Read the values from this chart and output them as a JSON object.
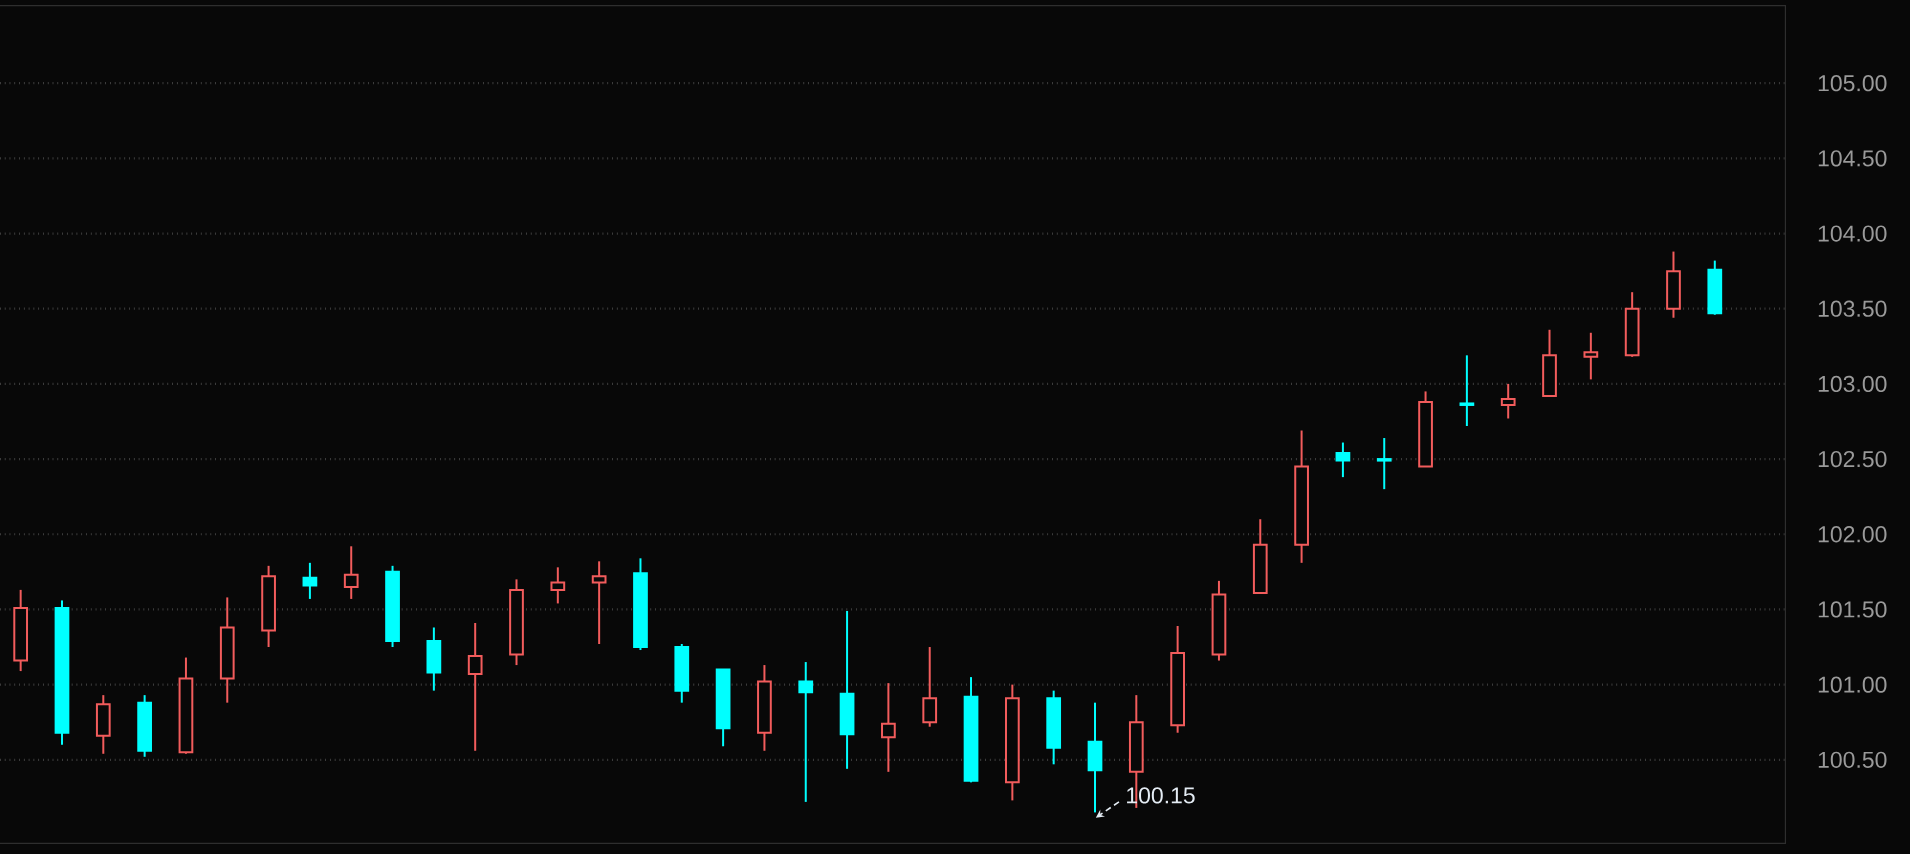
{
  "chart_data": {
    "type": "candlestick",
    "categories": [
      null,
      null,
      null,
      null,
      null,
      null,
      null,
      null,
      null,
      null,
      null,
      null,
      null,
      null,
      null,
      null,
      null,
      null,
      null,
      null,
      null,
      null,
      null,
      null,
      null,
      null,
      null,
      null,
      null,
      null,
      null,
      null,
      null,
      null,
      null,
      null,
      null,
      null,
      null,
      null,
      null,
      null
    ],
    "ohlc": [
      [
        101.16,
        101.63,
        101.09,
        101.51
      ],
      [
        101.51,
        101.56,
        100.6,
        100.68
      ],
      [
        100.66,
        100.93,
        100.54,
        100.87
      ],
      [
        100.88,
        100.93,
        100.52,
        100.56
      ],
      [
        100.55,
        101.18,
        100.54,
        101.04
      ],
      [
        101.04,
        101.58,
        100.88,
        101.38
      ],
      [
        101.36,
        101.79,
        101.25,
        101.72
      ],
      [
        101.71,
        101.81,
        101.57,
        101.66
      ],
      [
        101.65,
        101.92,
        101.57,
        101.73
      ],
      [
        101.75,
        101.79,
        101.25,
        101.29
      ],
      [
        101.29,
        101.38,
        100.96,
        101.08
      ],
      [
        101.07,
        101.41,
        100.56,
        101.19
      ],
      [
        101.2,
        101.7,
        101.13,
        101.63
      ],
      [
        101.63,
        101.78,
        101.54,
        101.68
      ],
      [
        101.68,
        101.82,
        101.27,
        101.72
      ],
      [
        101.74,
        101.84,
        101.23,
        101.25
      ],
      [
        101.25,
        101.27,
        100.88,
        100.96
      ],
      [
        101.1,
        101.1,
        100.59,
        100.71
      ],
      [
        100.68,
        101.13,
        100.56,
        101.02
      ],
      [
        101.02,
        101.15,
        100.22,
        100.95
      ],
      [
        100.94,
        101.49,
        100.44,
        100.67
      ],
      [
        100.65,
        101.01,
        100.42,
        100.74
      ],
      [
        100.75,
        101.25,
        100.72,
        100.91
      ],
      [
        100.92,
        101.05,
        100.35,
        100.36
      ],
      [
        100.35,
        101.0,
        100.23,
        100.91
      ],
      [
        100.91,
        100.96,
        100.47,
        100.58
      ],
      [
        100.62,
        100.88,
        100.15,
        100.43
      ],
      [
        100.42,
        100.93,
        100.18,
        100.75
      ],
      [
        100.73,
        101.39,
        100.68,
        101.21
      ],
      [
        101.2,
        101.69,
        101.16,
        101.6
      ],
      [
        101.61,
        102.1,
        101.61,
        101.93
      ],
      [
        101.93,
        102.69,
        101.81,
        102.45
      ],
      [
        102.54,
        102.61,
        102.38,
        102.49
      ],
      [
        102.5,
        102.64,
        102.3,
        102.49
      ],
      [
        102.45,
        102.95,
        102.45,
        102.88
      ],
      [
        102.87,
        103.19,
        102.72,
        102.86
      ],
      [
        102.86,
        103.0,
        102.77,
        102.9
      ],
      [
        102.92,
        103.36,
        102.92,
        103.19
      ],
      [
        103.18,
        103.34,
        103.03,
        103.21
      ],
      [
        103.19,
        103.61,
        103.18,
        103.5
      ],
      [
        103.5,
        103.88,
        103.44,
        103.75
      ],
      [
        103.76,
        103.82,
        103.46,
        103.47
      ]
    ],
    "colors": [
      "#f25c5c",
      "#00ffff",
      "#f25c5c",
      "#00ffff",
      "#f25c5c",
      "#f25c5c",
      "#f25c5c",
      "#00ffff",
      "#f25c5c",
      "#00ffff",
      "#00ffff",
      "#f25c5c",
      "#f25c5c",
      "#f25c5c",
      "#f25c5c",
      "#00ffff",
      "#00ffff",
      "#00ffff",
      "#f25c5c",
      "#00ffff",
      "#00ffff",
      "#f25c5c",
      "#f25c5c",
      "#00ffff",
      "#f25c5c",
      "#00ffff",
      "#00ffff",
      "#f25c5c",
      "#f25c5c",
      "#f25c5c",
      "#f25c5c",
      "#f25c5c",
      "#00ffff",
      "#00ffff",
      "#f25c5c",
      "#00ffff",
      "#f25c5c",
      "#f25c5c",
      "#f25c5c",
      "#f25c5c",
      "#f25c5c",
      "#00ffff"
    ],
    "ylim": [
      99.94,
      105.52
    ],
    "yticks": [
      {
        "value": 100.5,
        "label": "100.50"
      },
      {
        "value": 101.0,
        "label": "101.00"
      },
      {
        "value": 101.5,
        "label": "101.50"
      },
      {
        "value": 102.0,
        "label": "102.00"
      },
      {
        "value": 102.5,
        "label": "102.50"
      },
      {
        "value": 103.0,
        "label": "103.00"
      },
      {
        "value": 103.5,
        "label": "103.50"
      },
      {
        "value": 104.0,
        "label": "104.00"
      },
      {
        "value": 104.5,
        "label": "104.50"
      },
      {
        "value": 105.0,
        "label": "105.00"
      }
    ],
    "grid": "y",
    "tick_labels": "y",
    "annotations": [
      "100.15"
    ]
  }
}
